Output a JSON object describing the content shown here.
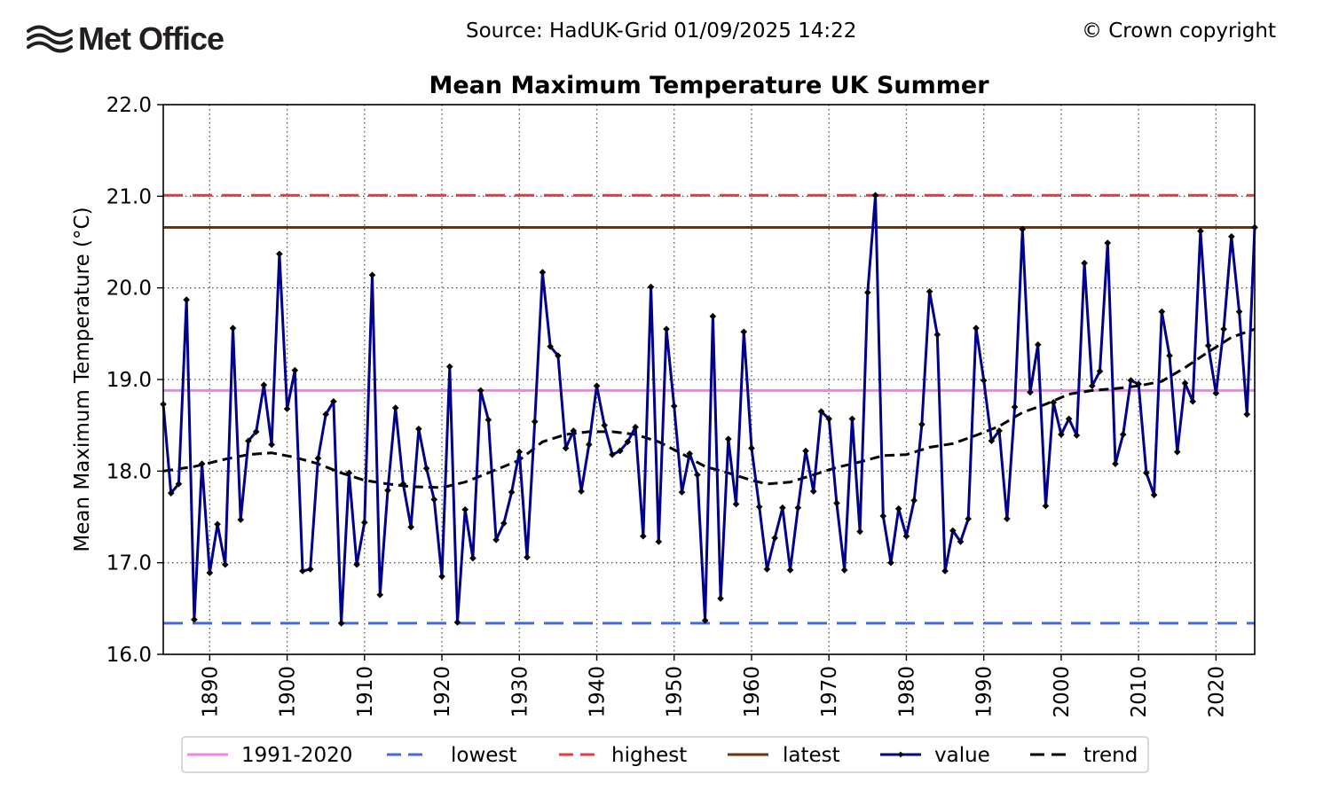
{
  "header": {
    "logo_text": "Met Office",
    "source": "Source: HadUK-Grid 01/09/2025 14:22",
    "copyright": "© Crown copyright"
  },
  "chart_data": {
    "type": "line",
    "title": "Mean Maximum Temperature UK Summer",
    "xlabel": "",
    "ylabel": "Mean Maximum Temperature (°C)",
    "xlim": [
      1884,
      2025
    ],
    "ylim": [
      16.0,
      22.0
    ],
    "x_ticks": [
      1890,
      1900,
      1910,
      1920,
      1930,
      1940,
      1950,
      1960,
      1970,
      1980,
      1990,
      2000,
      2010,
      2020
    ],
    "y_ticks": [
      "16.0",
      "17.0",
      "18.0",
      "19.0",
      "20.0",
      "21.0",
      "22.0"
    ],
    "grid": true,
    "reference_lines": {
      "baseline_1991_2020": 18.88,
      "lowest": 16.34,
      "highest": 21.01,
      "latest": 20.66
    },
    "legend": [
      {
        "key": "baseline",
        "label": "1991-2020",
        "color": "#ee82ee",
        "style": "solid"
      },
      {
        "key": "lowest",
        "label": "lowest",
        "color": "#4169e1",
        "style": "dashed"
      },
      {
        "key": "highest",
        "label": "highest",
        "color": "#e83a3a",
        "style": "dashed"
      },
      {
        "key": "latest",
        "label": "latest",
        "color": "#6b3308",
        "style": "solid"
      },
      {
        "key": "value",
        "label": "value",
        "color": "#00008b",
        "style": "marker"
      },
      {
        "key": "trend",
        "label": "trend",
        "color": "#000000",
        "style": "dashed"
      }
    ],
    "legend_position": "bottom-center",
    "series": [
      {
        "name": "value",
        "start_year": 1884,
        "values": [
          18.73,
          17.76,
          17.86,
          19.87,
          16.38,
          18.08,
          16.89,
          17.42,
          16.98,
          19.56,
          17.47,
          18.33,
          18.43,
          18.94,
          18.29,
          20.37,
          18.68,
          19.1,
          16.91,
          16.93,
          18.14,
          18.62,
          18.76,
          16.34,
          17.98,
          16.98,
          17.44,
          20.14,
          16.65,
          17.79,
          18.69,
          17.86,
          17.39,
          18.46,
          18.03,
          17.69,
          16.85,
          19.14,
          16.35,
          17.58,
          17.05,
          18.88,
          18.56,
          17.25,
          17.43,
          17.77,
          18.21,
          17.06,
          18.54,
          20.17,
          19.36,
          19.26,
          18.25,
          18.44,
          17.78,
          18.29,
          18.93,
          18.5,
          18.18,
          18.22,
          18.32,
          18.48,
          17.29,
          20.01,
          17.23,
          19.55,
          18.71,
          17.77,
          18.19,
          17.96,
          16.37,
          19.69,
          16.61,
          18.35,
          17.64,
          19.52,
          18.25,
          17.61,
          16.93,
          17.27,
          17.6,
          16.92,
          17.6,
          18.22,
          17.78,
          18.65,
          18.57,
          17.65,
          16.92,
          18.57,
          17.34,
          19.95,
          21.01,
          17.51,
          17.0,
          17.59,
          17.29,
          17.68,
          18.51,
          19.96,
          19.49,
          16.91,
          17.35,
          17.23,
          17.48,
          19.56,
          18.99,
          18.33,
          18.44,
          17.48,
          18.7,
          20.64,
          18.86,
          19.38,
          17.62,
          18.75,
          18.4,
          18.57,
          18.39,
          20.27,
          18.93,
          19.09,
          20.49,
          18.08,
          18.4,
          18.99,
          18.95,
          17.98,
          17.74,
          19.74,
          19.26,
          18.21,
          18.96,
          18.76,
          20.62,
          19.37,
          18.85,
          19.55,
          20.56,
          19.74,
          18.62,
          20.66
        ]
      },
      {
        "name": "trend",
        "x": [
          1884,
          1888,
          1892,
          1895,
          1898,
          1901,
          1904,
          1907,
          1910,
          1913,
          1916,
          1920,
          1923,
          1926,
          1930,
          1933,
          1936,
          1939,
          1942,
          1945,
          1948,
          1951,
          1954,
          1957,
          1960,
          1962,
          1965,
          1968,
          1971,
          1974,
          1977,
          1980,
          1983,
          1986,
          1989,
          1992,
          1995,
          1998,
          2001,
          2004,
          2007,
          2010,
          2013,
          2016,
          2019,
          2022,
          2025
        ],
        "values": [
          18.0,
          18.05,
          18.13,
          18.18,
          18.2,
          18.15,
          18.08,
          17.98,
          17.9,
          17.86,
          17.83,
          17.82,
          17.88,
          17.98,
          18.12,
          18.32,
          18.4,
          18.43,
          18.43,
          18.4,
          18.32,
          18.19,
          18.05,
          17.98,
          17.9,
          17.86,
          17.88,
          17.96,
          18.04,
          18.1,
          18.17,
          18.18,
          18.26,
          18.3,
          18.39,
          18.49,
          18.64,
          18.73,
          18.84,
          18.88,
          18.9,
          18.93,
          18.98,
          19.13,
          19.3,
          19.46,
          19.55
        ]
      }
    ]
  }
}
